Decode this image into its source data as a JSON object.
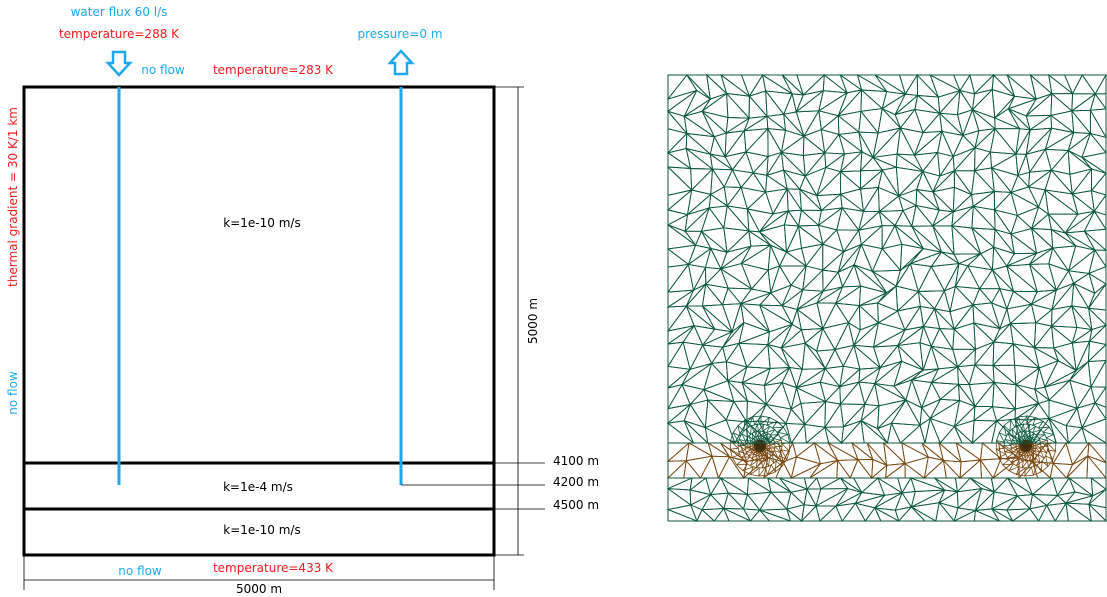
{
  "colors": {
    "blue": "#1fa8e8",
    "red": "#ef1c1c",
    "black": "#000000",
    "mesh_green": "#0f5a3f",
    "mesh_brown": "#7a4a14"
  },
  "top": {
    "water_flux": "water flux 60 l/s",
    "temperature_inlet": "temperature=288 K",
    "no_flow": "no flow",
    "temperature_top": "temperature=283 K",
    "pressure": "pressure=0 m"
  },
  "left": {
    "thermal_gradient": "thermal gradient = 30 K/1 km",
    "no_flow": "no flow"
  },
  "layers": {
    "upper": "k=1e-10 m/s",
    "aquifer": "k=1e-4 m/s",
    "lower": "k=1e-10 m/s"
  },
  "bottom": {
    "no_flow": "no flow",
    "temperature": "temperature=433 K",
    "width": "5000 m"
  },
  "right": {
    "height": "5000 m",
    "d4100": "4100 m",
    "d4200": "4200 m",
    "d4500": "4500 m"
  },
  "icons": {
    "inflow": "arrow-down-icon",
    "outflow": "arrow-up-icon"
  },
  "mesh": {
    "description_visible": false
  }
}
